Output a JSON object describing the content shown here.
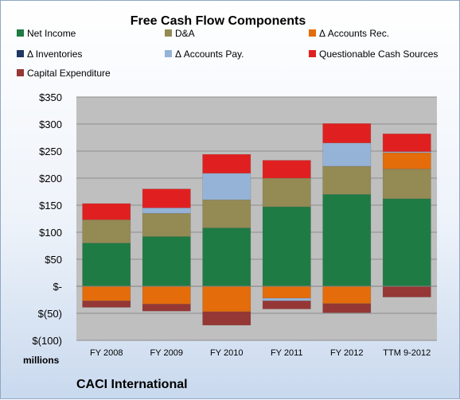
{
  "chart_data": {
    "type": "bar",
    "stacked": true,
    "title": "Free Cash Flow Components",
    "unit_label": "millions",
    "company": "CACI International",
    "categories": [
      "FY 2008",
      "FY 2009",
      "FY 2010",
      "FY 2011",
      "FY 2012",
      "TTM 9-2012"
    ],
    "ylim": [
      -100,
      350
    ],
    "yticks": [
      -100,
      -50,
      0,
      50,
      100,
      150,
      200,
      250,
      300,
      350
    ],
    "ytick_labels": [
      "$(100)",
      "$(50)",
      "$-",
      "$50",
      "$100",
      "$150",
      "$200",
      "$250",
      "$300",
      "$350"
    ],
    "grid": true,
    "legend_position": "top",
    "series": [
      {
        "name": "Net Income",
        "color": "#1e7b44",
        "values": [
          80,
          92,
          108,
          147,
          170,
          162
        ]
      },
      {
        "name": "D&A",
        "color": "#948a54",
        "values": [
          43,
          43,
          52,
          53,
          52,
          55
        ]
      },
      {
        "name": "Δ Accounts Rec.",
        "color": "#e46c0a",
        "values": [
          -27,
          -33,
          -47,
          -22,
          -32,
          30
        ]
      },
      {
        "name": "Δ Inventories",
        "color": "#1f3864",
        "values": [
          0,
          0,
          0,
          0,
          0,
          0
        ]
      },
      {
        "name": "Δ Accounts Pay.",
        "color": "#95b3d7",
        "values": [
          0,
          10,
          49,
          -5,
          43,
          2
        ]
      },
      {
        "name": "Questionable Cash Sources",
        "color": "#e02020",
        "values": [
          30,
          35,
          35,
          33,
          36,
          33
        ]
      },
      {
        "name": "Capital Expenditure",
        "color": "#953735",
        "values": [
          -12,
          -13,
          -25,
          -15,
          -17,
          -20
        ]
      }
    ]
  }
}
